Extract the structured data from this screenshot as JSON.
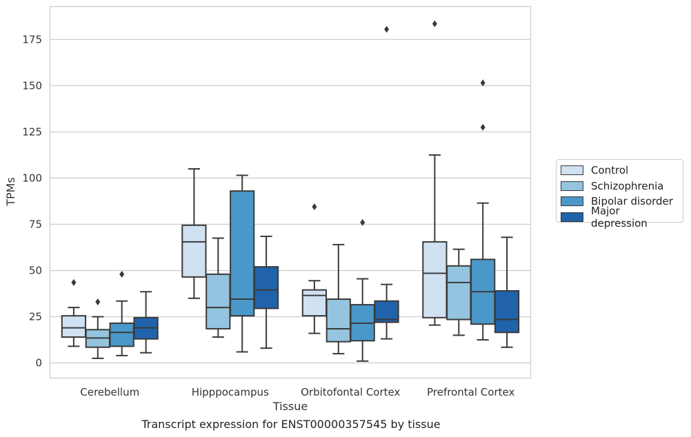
{
  "chart_data": {
    "type": "boxplot",
    "xlabel": "Tissue",
    "ylabel": "TPMs",
    "caption": "Transcript expression for ENST00000357545 by tissue",
    "ylim": [
      -8,
      193
    ],
    "yticks": [
      0,
      25,
      50,
      75,
      100,
      125,
      150,
      175
    ],
    "grid": "horizontal",
    "legend_position": "right",
    "categories": [
      "Cerebellum",
      "Hipppocampus",
      "Orbitofontal Cortex",
      "Prefrontal Cortex"
    ],
    "series": [
      {
        "name": "Control",
        "color": "#d0e1f2",
        "boxes": [
          {
            "whislo": 9,
            "q1": 14,
            "med": 19,
            "q3": 25.5,
            "whishi": 30,
            "fliers": [
              43.5
            ]
          },
          {
            "whislo": 35,
            "q1": 46.5,
            "med": 65.5,
            "q3": 74.5,
            "whishi": 105,
            "fliers": []
          },
          {
            "whislo": 16,
            "q1": 25.5,
            "med": 36.5,
            "q3": 39.5,
            "whishi": 44.5,
            "fliers": [
              84.5
            ]
          },
          {
            "whislo": 20.5,
            "q1": 24.5,
            "med": 48.5,
            "q3": 65.5,
            "whishi": 112.5,
            "fliers": [
              183.5
            ]
          }
        ]
      },
      {
        "name": "Schizophrenia",
        "color": "#94c4df",
        "boxes": [
          {
            "whislo": 2.5,
            "q1": 8.5,
            "med": 13.5,
            "q3": 18,
            "whishi": 25,
            "fliers": [
              33
            ]
          },
          {
            "whislo": 14,
            "q1": 18.5,
            "med": 30,
            "q3": 48,
            "whishi": 67.5,
            "fliers": []
          },
          {
            "whislo": 5,
            "q1": 11.5,
            "med": 18.5,
            "q3": 34.5,
            "whishi": 64,
            "fliers": []
          },
          {
            "whislo": 15,
            "q1": 23.5,
            "med": 43.5,
            "q3": 52.5,
            "whishi": 61.5,
            "fliers": []
          }
        ]
      },
      {
        "name": "Bipolar disorder",
        "color": "#4a98c9",
        "boxes": [
          {
            "whislo": 4,
            "q1": 9,
            "med": 16.5,
            "q3": 21.5,
            "whishi": 33.5,
            "fliers": [
              48
            ]
          },
          {
            "whislo": 6,
            "q1": 25.5,
            "med": 34.5,
            "q3": 93,
            "whishi": 101.5,
            "fliers": []
          },
          {
            "whislo": 1,
            "q1": 12,
            "med": 21.5,
            "q3": 31.5,
            "whishi": 45.5,
            "fliers": [
              76
            ]
          },
          {
            "whislo": 12.5,
            "q1": 21,
            "med": 38.5,
            "q3": 56,
            "whishi": 86.5,
            "fliers": [
              127.5,
              151.5
            ]
          }
        ]
      },
      {
        "name": "Major depression",
        "color": "#2163aa",
        "boxes": [
          {
            "whislo": 5.5,
            "q1": 13,
            "med": 19,
            "q3": 24.5,
            "whishi": 38.5,
            "fliers": []
          },
          {
            "whislo": 8,
            "q1": 29.5,
            "med": 39.5,
            "q3": 52,
            "whishi": 68.5,
            "fliers": []
          },
          {
            "whislo": 13,
            "q1": 22,
            "med": 23.5,
            "q3": 33.5,
            "whishi": 42.5,
            "fliers": [
              180.5
            ]
          },
          {
            "whislo": 8.5,
            "q1": 16.5,
            "med": 23.5,
            "q3": 39,
            "whishi": 68,
            "fliers": []
          }
        ]
      }
    ]
  }
}
